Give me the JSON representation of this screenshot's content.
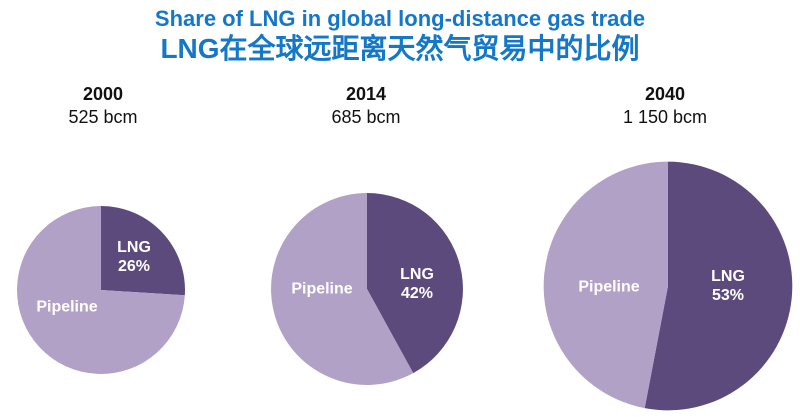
{
  "title": {
    "line1": "Share of LNG in global long-distance gas trade",
    "line2": "LNG在全球远距离天然气贸易中的比例",
    "color": "#1577C8"
  },
  "chart_data": {
    "type": "pie",
    "title": "Share of LNG in global long-distance gas trade",
    "title_zh": "LNG在全球远距离天然气贸易中的比例",
    "legend_position": "none",
    "colors": {
      "lng": "#5D4A7C",
      "pipeline": "#B2A1C7"
    },
    "label_color": "#FFFFFF",
    "pies": [
      {
        "year": "2000",
        "volume_label": "525 bcm",
        "volume_bcm": 525,
        "slices": [
          {
            "label": "LNG",
            "pct": 26,
            "pct_label": "26%"
          },
          {
            "label": "Pipeline",
            "pct": 74
          }
        ]
      },
      {
        "year": "2014",
        "volume_label": "685 bcm",
        "volume_bcm": 685,
        "slices": [
          {
            "label": "LNG",
            "pct": 42,
            "pct_label": "42%"
          },
          {
            "label": "Pipeline",
            "pct": 58
          }
        ]
      },
      {
        "year": "2040",
        "volume_label": "1 150 bcm",
        "volume_bcm": 1150,
        "slices": [
          {
            "label": "LNG",
            "pct": 53,
            "pct_label": "53%"
          },
          {
            "label": "Pipeline",
            "pct": 47
          }
        ]
      }
    ],
    "layout_hint": "three pies side by side, pie area proportional to total trade volume, LNG slice starts at 12 o'clock and sweeps clockwise"
  }
}
